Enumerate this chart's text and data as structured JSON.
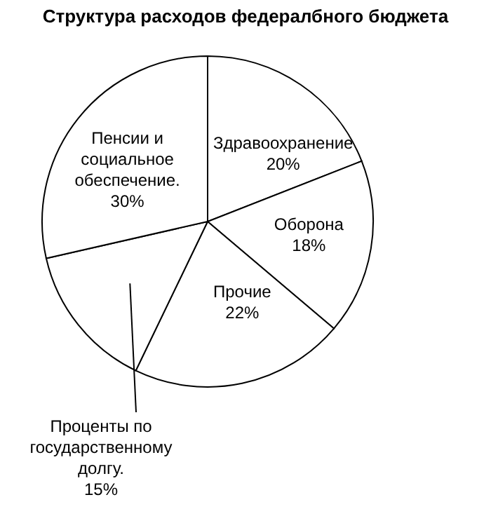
{
  "chart_data": {
    "type": "pie",
    "title": "Структура расходов федералбного бюджета",
    "categories": [
      "Здравоохранение",
      "Оборона",
      "Прочие",
      "Проценты по государственному долгу.",
      "Пенсии и социальное обеспечение."
    ],
    "values": [
      20,
      18,
      22,
      15,
      30
    ],
    "colors": [
      "#ffffff",
      "#ffffff",
      "#ffffff",
      "#ffffff",
      "#ffffff"
    ],
    "value_labels": [
      "20%",
      "18%",
      "22%",
      "15%",
      "30%"
    ]
  }
}
